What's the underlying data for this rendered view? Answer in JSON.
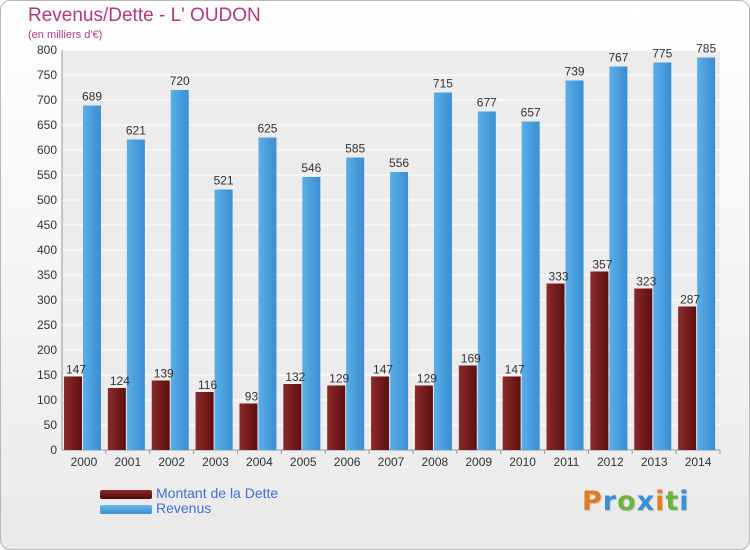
{
  "chart_data": {
    "type": "bar",
    "title": "Revenus/Dette - L' OUDON",
    "subtitle": "(en milliers d'€)",
    "categories": [
      "2000",
      "2001",
      "2002",
      "2003",
      "2004",
      "2005",
      "2006",
      "2007",
      "2008",
      "2009",
      "2010",
      "2011",
      "2012",
      "2013",
      "2014"
    ],
    "series": [
      {
        "name": "Montant de la Dette",
        "values": [
          147,
          124,
          139,
          116,
          93,
          132,
          129,
          147,
          129,
          169,
          147,
          333,
          357,
          323,
          287
        ],
        "color": "#7a1b1b"
      },
      {
        "name": "Revenus",
        "values": [
          689,
          621,
          720,
          521,
          625,
          546,
          585,
          556,
          715,
          677,
          657,
          739,
          767,
          775,
          785
        ],
        "color": "#4aa0e0"
      }
    ],
    "ylim": [
      0,
      800
    ],
    "ytick_step": 50,
    "yticks": [
      "0",
      "50",
      "100",
      "150",
      "200",
      "250",
      "300",
      "350",
      "400",
      "450",
      "500",
      "550",
      "600",
      "650",
      "700",
      "750",
      "800"
    ],
    "grid": true,
    "legend": "bottom-left"
  },
  "logo": {
    "letters": [
      "P",
      "r",
      "o",
      "x",
      "i",
      "t",
      "i"
    ],
    "colors": [
      "#e07b1f",
      "#3a8fd6",
      "#6db33f",
      "#3a8fd6",
      "#e07b1f",
      "#6db33f",
      "#3a8fd6"
    ]
  }
}
